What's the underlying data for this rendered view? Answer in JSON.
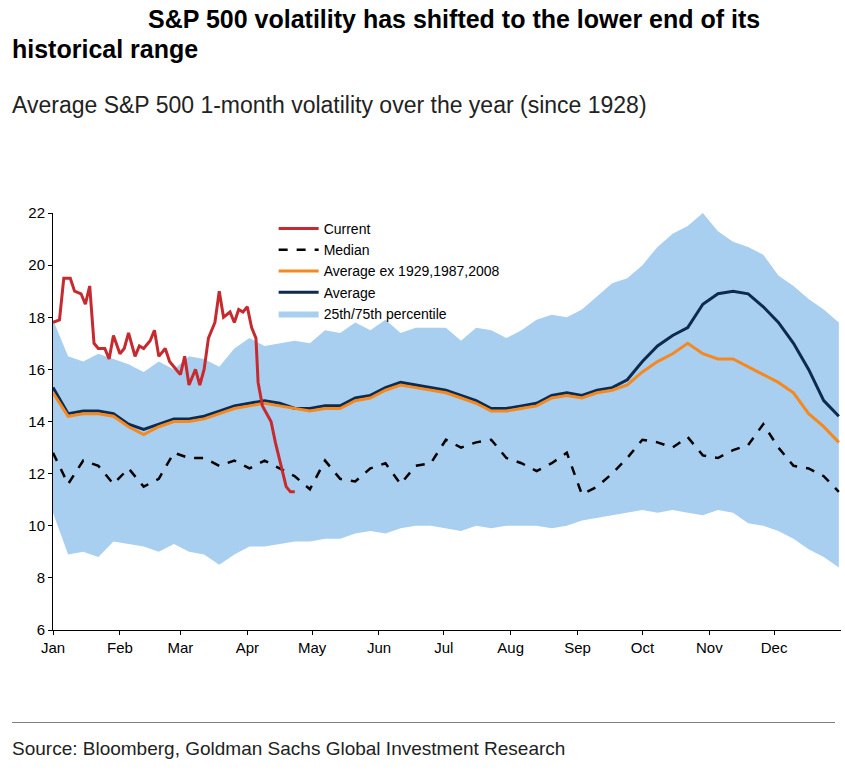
{
  "chart_data": {
    "type": "line",
    "title": "S&P 500 volatility has shifted to the lower end of its historical range",
    "subtitle": "Average S&P 500 1-month volatility over the year (since 1928)",
    "annotations": [
      "Source: Bloomberg, Goldman Sachs Global Investment Research"
    ],
    "x": [
      0,
      7,
      14,
      21,
      28,
      35,
      42,
      49,
      56,
      63,
      70,
      77,
      84,
      91,
      98,
      105,
      112,
      119,
      126,
      133,
      140,
      147,
      154,
      161,
      168,
      175,
      182,
      189,
      196,
      203,
      210,
      217,
      224,
      231,
      238,
      245,
      252,
      259,
      266,
      273,
      280,
      287,
      294,
      301,
      308,
      315,
      322,
      329,
      336,
      343,
      350,
      357,
      364
    ],
    "series": [
      {
        "name": "25th/75th percentile",
        "type": "band",
        "color": "#a8cfef",
        "lower": [
          10.5,
          8.9,
          9.0,
          8.8,
          9.4,
          9.3,
          9.2,
          9.0,
          9.3,
          9.0,
          8.9,
          8.5,
          8.9,
          9.2,
          9.2,
          9.3,
          9.4,
          9.4,
          9.5,
          9.5,
          9.7,
          9.8,
          9.7,
          9.9,
          10.0,
          10.0,
          9.9,
          9.8,
          10.0,
          9.9,
          10.0,
          10.0,
          10.0,
          9.9,
          10.0,
          10.2,
          10.3,
          10.4,
          10.5,
          10.6,
          10.5,
          10.6,
          10.5,
          10.4,
          10.6,
          10.5,
          10.1,
          10.0,
          9.8,
          9.5,
          9.1,
          8.8,
          8.4
        ],
        "upper": [
          17.9,
          16.5,
          16.3,
          16.6,
          16.4,
          16.2,
          15.9,
          16.3,
          16.0,
          16.5,
          16.4,
          16.1,
          16.8,
          17.2,
          16.9,
          17.0,
          17.1,
          17.0,
          17.5,
          17.4,
          17.8,
          17.5,
          17.9,
          17.4,
          17.6,
          17.6,
          17.6,
          17.1,
          17.6,
          17.5,
          17.2,
          17.5,
          17.9,
          18.1,
          18.0,
          18.3,
          18.8,
          19.3,
          19.5,
          20.0,
          20.7,
          21.2,
          21.5,
          22.0,
          21.3,
          20.9,
          20.7,
          20.4,
          19.6,
          19.2,
          18.7,
          18.3,
          17.8
        ]
      },
      {
        "name": "Average",
        "type": "line",
        "color": "#0d2b4e",
        "line_style": "solid",
        "values": [
          15.3,
          14.3,
          14.4,
          14.4,
          14.3,
          13.9,
          13.7,
          13.9,
          14.1,
          14.1,
          14.2,
          14.4,
          14.6,
          14.7,
          14.8,
          14.7,
          14.5,
          14.5,
          14.6,
          14.6,
          14.9,
          15.0,
          15.3,
          15.5,
          15.4,
          15.3,
          15.2,
          15.0,
          14.8,
          14.5,
          14.5,
          14.6,
          14.7,
          15.0,
          15.1,
          15.0,
          15.2,
          15.3,
          15.6,
          16.3,
          16.9,
          17.3,
          17.6,
          18.5,
          18.9,
          19.0,
          18.9,
          18.4,
          17.8,
          17.0,
          16.0,
          14.8,
          14.2
        ]
      },
      {
        "name": "Average ex 1929,1987,2008",
        "type": "line",
        "color": "#f5891f",
        "line_style": "solid",
        "values": [
          15.1,
          14.2,
          14.3,
          14.3,
          14.2,
          13.8,
          13.5,
          13.8,
          14.0,
          14.0,
          14.1,
          14.3,
          14.5,
          14.6,
          14.7,
          14.6,
          14.5,
          14.4,
          14.5,
          14.5,
          14.8,
          14.9,
          15.2,
          15.4,
          15.3,
          15.2,
          15.1,
          14.9,
          14.7,
          14.4,
          14.4,
          14.5,
          14.6,
          14.9,
          15.0,
          14.9,
          15.1,
          15.2,
          15.4,
          15.9,
          16.3,
          16.6,
          17.0,
          16.6,
          16.4,
          16.4,
          16.1,
          15.8,
          15.5,
          15.1,
          14.3,
          13.8,
          13.2
        ]
      },
      {
        "name": "Median",
        "type": "line",
        "color": "#000000",
        "line_style": "dash",
        "values": [
          12.8,
          11.6,
          12.5,
          12.3,
          11.6,
          12.2,
          11.5,
          11.8,
          12.8,
          12.6,
          12.6,
          12.3,
          12.5,
          12.2,
          12.5,
          12.2,
          11.9,
          11.4,
          12.5,
          11.8,
          11.7,
          12.2,
          12.4,
          11.6,
          12.3,
          12.4,
          13.3,
          13.0,
          13.2,
          13.3,
          12.6,
          12.4,
          12.1,
          12.4,
          12.8,
          11.2,
          11.5,
          12.0,
          12.6,
          13.3,
          13.2,
          13.0,
          13.4,
          12.7,
          12.6,
          12.9,
          13.1,
          13.9,
          13.0,
          12.3,
          12.2,
          11.9,
          11.3
        ]
      },
      {
        "name": "Current",
        "type": "line",
        "color": "#c62a2f",
        "line_style": "solid",
        "x": [
          0,
          3,
          5,
          8,
          10,
          13,
          15,
          17,
          19,
          21,
          24,
          26,
          28,
          31,
          33,
          35,
          38,
          40,
          42,
          45,
          47,
          49,
          52,
          54,
          56,
          59,
          61,
          63,
          66,
          68,
          70,
          72,
          75,
          77,
          79,
          82,
          84,
          86,
          88,
          90,
          92,
          94,
          95,
          97,
          99,
          101,
          103,
          105,
          108,
          110,
          112
        ],
        "values": [
          17.8,
          17.9,
          19.5,
          19.5,
          19.0,
          18.9,
          18.5,
          19.2,
          17.0,
          16.8,
          16.8,
          16.4,
          17.3,
          16.6,
          16.8,
          17.4,
          16.5,
          16.9,
          16.8,
          17.1,
          17.5,
          16.5,
          16.8,
          16.3,
          16.1,
          15.8,
          16.5,
          15.4,
          16.0,
          15.4,
          16.0,
          17.2,
          17.8,
          19.0,
          18.0,
          18.2,
          17.8,
          18.3,
          18.2,
          18.4,
          17.6,
          17.2,
          15.5,
          14.6,
          14.3,
          14.0,
          13.2,
          12.5,
          11.5,
          11.3,
          11.3
        ]
      }
    ],
    "xlim": [
      0,
      365
    ],
    "xticks": [
      {
        "value": 0,
        "label": "Jan"
      },
      {
        "value": 31,
        "label": "Feb"
      },
      {
        "value": 59,
        "label": "Mar"
      },
      {
        "value": 90,
        "label": "Apr"
      },
      {
        "value": 120,
        "label": "May"
      },
      {
        "value": 151,
        "label": "Jun"
      },
      {
        "value": 181,
        "label": "Jul"
      },
      {
        "value": 212,
        "label": "Aug"
      },
      {
        "value": 243,
        "label": "Sep"
      },
      {
        "value": 273,
        "label": "Oct"
      },
      {
        "value": 304,
        "label": "Nov"
      },
      {
        "value": 334,
        "label": "Dec"
      }
    ],
    "ylim": [
      6,
      22
    ],
    "yticks": [
      6,
      8,
      10,
      12,
      14,
      16,
      18,
      20,
      22
    ],
    "grid": false,
    "legend": "top"
  }
}
